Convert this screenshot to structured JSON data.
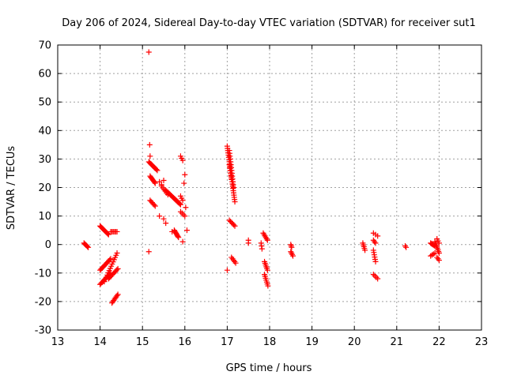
{
  "chart_data": {
    "type": "scatter",
    "title": "Day 206 of 2024, Sidereal Day-to-day VTEC variation (SDTVAR) for receiver sut1",
    "xlabel": "GPS time / hours",
    "ylabel": "SDTVAR / TECUs",
    "xlim": [
      13,
      23
    ],
    "ylim": [
      -30,
      70
    ],
    "xticks": [
      "13",
      "14",
      "15",
      "16",
      "17",
      "18",
      "19",
      "20",
      "21",
      "22",
      "23"
    ],
    "yticks": [
      "-30",
      "-20",
      "-10",
      "0",
      "10",
      "20",
      "30",
      "40",
      "50",
      "60",
      "70"
    ],
    "grid": true,
    "marker": "+",
    "series_color": "#ff0000",
    "segments": [
      {
        "x0": 13.62,
        "y0": 0.5,
        "x1": 13.72,
        "y1": -1.0,
        "n": 6
      },
      {
        "x0": 14.0,
        "y0": 6.5,
        "x1": 14.2,
        "y1": 3.5,
        "n": 12
      },
      {
        "x0": 14.25,
        "y0": 4.5,
        "x1": 14.4,
        "y1": 4.5,
        "n": 6
      },
      {
        "x0": 14.0,
        "y0": -9.0,
        "x1": 14.25,
        "y1": -5.0,
        "n": 12
      },
      {
        "x0": 14.0,
        "y0": -14.0,
        "x1": 14.25,
        "y1": -10.0,
        "n": 12
      },
      {
        "x0": 14.1,
        "y0": -13.0,
        "x1": 14.4,
        "y1": -3.0,
        "n": 14
      },
      {
        "x0": 14.2,
        "y0": -12.0,
        "x1": 14.42,
        "y1": -8.5,
        "n": 10
      },
      {
        "x0": 14.28,
        "y0": -20.5,
        "x1": 14.42,
        "y1": -17.5,
        "n": 8
      },
      {
        "x0": 15.15,
        "y0": 29.0,
        "x1": 15.35,
        "y1": 26.0,
        "n": 10
      },
      {
        "x0": 15.18,
        "y0": 24.0,
        "x1": 15.3,
        "y1": 21.5,
        "n": 8
      },
      {
        "x0": 15.18,
        "y0": 15.5,
        "x1": 15.3,
        "y1": 13.5,
        "n": 6
      },
      {
        "x0": 15.45,
        "y0": 20.5,
        "x1": 15.6,
        "y1": 17.5,
        "n": 6
      },
      {
        "x0": 15.55,
        "y0": 19.0,
        "x1": 15.9,
        "y1": 14.0,
        "n": 18
      },
      {
        "x0": 15.75,
        "y0": 5.0,
        "x1": 15.85,
        "y1": 2.5,
        "n": 8
      },
      {
        "x0": 15.9,
        "y0": 31.0,
        "x1": 15.95,
        "y1": 29.5,
        "n": 3
      },
      {
        "x0": 15.9,
        "y0": 17.0,
        "x1": 15.95,
        "y1": 15.5,
        "n": 3
      },
      {
        "x0": 15.9,
        "y0": 11.5,
        "x1": 16.0,
        "y1": 10.0,
        "n": 4
      },
      {
        "x0": 17.0,
        "y0": 34.5,
        "x1": 17.18,
        "y1": 15.0,
        "n": 26
      },
      {
        "x0": 17.05,
        "y0": 33.0,
        "x1": 17.15,
        "y1": 20.0,
        "n": 14
      },
      {
        "x0": 17.05,
        "y0": 28.0,
        "x1": 17.1,
        "y1": 23.0,
        "n": 6
      },
      {
        "x0": 17.05,
        "y0": 8.5,
        "x1": 17.18,
        "y1": 6.5,
        "n": 6
      },
      {
        "x0": 17.1,
        "y0": -4.5,
        "x1": 17.2,
        "y1": -6.5,
        "n": 5
      },
      {
        "x0": 17.8,
        "y0": 0.5,
        "x1": 17.82,
        "y1": -1.5,
        "n": 3
      },
      {
        "x0": 17.85,
        "y0": 4.0,
        "x1": 17.95,
        "y1": 1.5,
        "n": 6
      },
      {
        "x0": 17.88,
        "y0": -6.0,
        "x1": 17.95,
        "y1": -9.0,
        "n": 6
      },
      {
        "x0": 17.88,
        "y0": -10.5,
        "x1": 17.96,
        "y1": -14.5,
        "n": 7
      },
      {
        "x0": 18.5,
        "y0": 0.0,
        "x1": 18.52,
        "y1": -1.0,
        "n": 3
      },
      {
        "x0": 18.5,
        "y0": -2.5,
        "x1": 18.55,
        "y1": -4.0,
        "n": 4
      },
      {
        "x0": 20.2,
        "y0": 0.5,
        "x1": 20.25,
        "y1": -2.0,
        "n": 5
      },
      {
        "x0": 20.45,
        "y0": 4.0,
        "x1": 20.55,
        "y1": 3.0,
        "n": 3
      },
      {
        "x0": 20.45,
        "y0": 1.5,
        "x1": 20.5,
        "y1": 0.5,
        "n": 3
      },
      {
        "x0": 20.45,
        "y0": -2.0,
        "x1": 20.5,
        "y1": -6.0,
        "n": 6
      },
      {
        "x0": 20.45,
        "y0": -10.5,
        "x1": 20.55,
        "y1": -12.0,
        "n": 4
      },
      {
        "x0": 21.2,
        "y0": -0.5,
        "x1": 21.22,
        "y1": -1.0,
        "n": 2
      },
      {
        "x0": 21.8,
        "y0": 0.5,
        "x1": 21.9,
        "y1": -0.5,
        "n": 6
      },
      {
        "x0": 21.8,
        "y0": -4.0,
        "x1": 21.9,
        "y1": -3.0,
        "n": 4
      },
      {
        "x0": 21.9,
        "y0": 1.0,
        "x1": 22.0,
        "y1": -3.0,
        "n": 8
      },
      {
        "x0": 21.95,
        "y0": 2.0,
        "x1": 22.0,
        "y1": 0.5,
        "n": 3
      },
      {
        "x0": 21.95,
        "y0": -4.5,
        "x1": 22.0,
        "y1": -5.5,
        "n": 3
      }
    ],
    "points": [
      {
        "x": 15.15,
        "y": 67.5
      },
      {
        "x": 15.17,
        "y": 35.0
      },
      {
        "x": 15.18,
        "y": 31.0
      },
      {
        "x": 15.15,
        "y": -2.5
      },
      {
        "x": 15.4,
        "y": 22.0
      },
      {
        "x": 15.45,
        "y": 21.0
      },
      {
        "x": 15.5,
        "y": 22.5
      },
      {
        "x": 15.4,
        "y": 10.0
      },
      {
        "x": 15.5,
        "y": 9.0
      },
      {
        "x": 15.55,
        "y": 7.5
      },
      {
        "x": 15.7,
        "y": 4.5
      },
      {
        "x": 15.95,
        "y": 1.0
      },
      {
        "x": 16.0,
        "y": 24.5
      },
      {
        "x": 15.98,
        "y": 21.5
      },
      {
        "x": 16.02,
        "y": 13.0
      },
      {
        "x": 16.05,
        "y": 5.0
      },
      {
        "x": 17.0,
        "y": -9.0
      },
      {
        "x": 17.5,
        "y": 1.5
      },
      {
        "x": 17.5,
        "y": 0.5
      }
    ]
  }
}
